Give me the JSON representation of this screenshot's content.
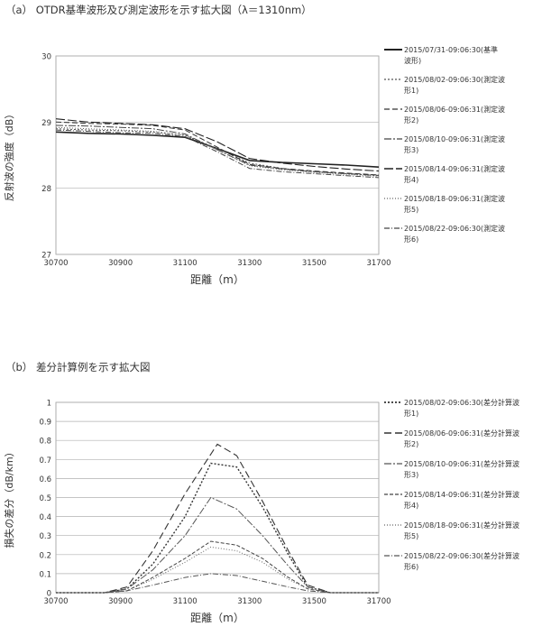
{
  "figure_a_title": "（a）  OTDR基準波形及び測定波形を示す拡大図（λ＝1310nm）",
  "figure_b_title": "（b）  差分計算例を示す拡大図",
  "chart_data": [
    {
      "type": "line",
      "title": "",
      "xlabel": "距離（m）",
      "ylabel": "反射波の強度（dB）",
      "xlim": [
        30700,
        31700
      ],
      "ylim": [
        27,
        30
      ],
      "xticks": [
        30700,
        30900,
        31100,
        31300,
        31500,
        31700
      ],
      "yticks": [
        27,
        28,
        29,
        30
      ],
      "x_tick_labels": [
        "30700",
        "30900",
        "31100",
        "31300",
        "31500",
        "31700"
      ],
      "y_tick_labels": [
        "27",
        "28",
        "29",
        "30"
      ],
      "grid": "horizontal",
      "legend_position": "right",
      "series": [
        {
          "name": "2015/07/31-09:06:30(基準波形)",
          "dash": "solid",
          "color": "#222222",
          "width": 1.6,
          "x": [
            30700,
            30800,
            30900,
            31000,
            31100,
            31200,
            31300,
            31400,
            31500,
            31600,
            31700
          ],
          "y": [
            28.85,
            28.83,
            28.82,
            28.8,
            28.77,
            28.6,
            28.42,
            28.39,
            28.37,
            28.35,
            28.32
          ]
        },
        {
          "name": "2015/08/02-09:06:30(測定波形1)",
          "dash": "2 2",
          "color": "#555555",
          "width": 1.0,
          "x": [
            30700,
            30800,
            30900,
            31000,
            31100,
            31200,
            31300,
            31400,
            31500,
            31600,
            31700
          ],
          "y": [
            28.9,
            28.88,
            28.87,
            28.85,
            28.8,
            28.6,
            28.38,
            28.3,
            28.25,
            28.22,
            28.2
          ]
        },
        {
          "name": "2015/08/06-09:06:31(測定波形2)",
          "dash": "6 3",
          "color": "#333333",
          "width": 1.0,
          "x": [
            30700,
            30800,
            30900,
            31000,
            31100,
            31200,
            31300,
            31400,
            31500,
            31600,
            31700
          ],
          "y": [
            29.0,
            28.98,
            28.97,
            28.95,
            28.88,
            28.62,
            28.36,
            28.3,
            28.26,
            28.23,
            28.2
          ]
        },
        {
          "name": "2015/08/10-09:06:31(測定波形3)",
          "dash": "8 2 2 2",
          "color": "#444444",
          "width": 1.0,
          "x": [
            30700,
            30800,
            30900,
            31000,
            31100,
            31200,
            31300,
            31400,
            31500,
            31600,
            31700
          ],
          "y": [
            28.95,
            28.94,
            28.92,
            28.9,
            28.82,
            28.58,
            28.35,
            28.29,
            28.25,
            28.22,
            28.19
          ]
        },
        {
          "name": "2015/08/14-09:06:31(測定波形4)",
          "dash": "10 3",
          "color": "#222222",
          "width": 1.1,
          "x": [
            30700,
            30800,
            30900,
            31000,
            31100,
            31200,
            31300,
            31400,
            31500,
            31600,
            31700
          ],
          "y": [
            29.05,
            29.0,
            28.98,
            28.96,
            28.9,
            28.7,
            28.45,
            28.38,
            28.33,
            28.29,
            28.26
          ]
        },
        {
          "name": "2015/08/18-09:06:31(測定波形5)",
          "dash": "1 2",
          "color": "#666666",
          "width": 1.0,
          "x": [
            30700,
            30800,
            30900,
            31000,
            31100,
            31200,
            31300,
            31400,
            31500,
            31600,
            31700
          ],
          "y": [
            28.92,
            28.9,
            28.88,
            28.86,
            28.8,
            28.58,
            28.34,
            28.28,
            28.24,
            28.21,
            28.18
          ]
        },
        {
          "name": "2015/08/22-09:06:30(測定波形6)",
          "dash": "6 2 1 2",
          "color": "#444444",
          "width": 1.0,
          "x": [
            30700,
            30800,
            30900,
            31000,
            31100,
            31200,
            31300,
            31400,
            31500,
            31600,
            31700
          ],
          "y": [
            28.88,
            28.86,
            28.84,
            28.83,
            28.78,
            28.55,
            28.3,
            28.25,
            28.22,
            28.19,
            28.16
          ]
        }
      ]
    },
    {
      "type": "line",
      "title": "",
      "xlabel": "距離（m）",
      "ylabel": "損失の差分（dB/km）",
      "xlim": [
        30700,
        31700
      ],
      "ylim": [
        0,
        1
      ],
      "xticks": [
        30700,
        30900,
        31100,
        31300,
        31500,
        31700
      ],
      "yticks": [
        0,
        0.1,
        0.2,
        0.3,
        0.4,
        0.5,
        0.6,
        0.7,
        0.8,
        0.9,
        1
      ],
      "x_tick_labels": [
        "30700",
        "30900",
        "31100",
        "31300",
        "31500",
        "31700"
      ],
      "y_tick_labels": [
        "0",
        "0.1",
        "0.2",
        "0.3",
        "0.4",
        "0.5",
        "0.6",
        "0.7",
        "0.8",
        "0.9",
        "1"
      ],
      "grid": "horizontal",
      "legend_position": "right",
      "series": [
        {
          "name": "2015/08/02-09:06:30(差分計算波形1)",
          "dash": "2 2",
          "color": "#333333",
          "width": 1.4,
          "x": [
            30700,
            30850,
            30920,
            31000,
            31100,
            31180,
            31260,
            31340,
            31420,
            31480,
            31550,
            31700
          ],
          "y": [
            0,
            0,
            0.02,
            0.15,
            0.4,
            0.68,
            0.66,
            0.45,
            0.2,
            0.03,
            0,
            0
          ]
        },
        {
          "name": "2015/08/06-09:06:31(差分計算波形2)",
          "dash": "8 4",
          "color": "#333333",
          "width": 1.1,
          "x": [
            30700,
            30850,
            30920,
            31000,
            31100,
            31200,
            31260,
            31340,
            31420,
            31480,
            31550,
            31700
          ],
          "y": [
            0,
            0,
            0.03,
            0.22,
            0.52,
            0.78,
            0.72,
            0.48,
            0.22,
            0.04,
            0,
            0
          ]
        },
        {
          "name": "2015/08/10-09:06:31(差分計算波形3)",
          "dash": "8 2 2 2",
          "color": "#555555",
          "width": 1.0,
          "x": [
            30700,
            30850,
            30920,
            31000,
            31100,
            31180,
            31260,
            31340,
            31420,
            31480,
            31550,
            31700
          ],
          "y": [
            0,
            0,
            0.02,
            0.12,
            0.3,
            0.5,
            0.44,
            0.3,
            0.14,
            0.03,
            0,
            0
          ]
        },
        {
          "name": "2015/08/14-09:06:31(差分計算波形4)",
          "dash": "4 2",
          "color": "#444444",
          "width": 1.0,
          "x": [
            30700,
            30850,
            30920,
            31000,
            31100,
            31180,
            31260,
            31340,
            31420,
            31480,
            31550,
            31700
          ],
          "y": [
            0,
            0,
            0.01,
            0.08,
            0.18,
            0.27,
            0.25,
            0.18,
            0.08,
            0.02,
            0,
            0
          ]
        },
        {
          "name": "2015/08/18-09:06:31(差分計算波形5)",
          "dash": "1 2",
          "color": "#666666",
          "width": 1.0,
          "x": [
            30700,
            30850,
            30920,
            31000,
            31100,
            31180,
            31260,
            31340,
            31420,
            31480,
            31550,
            31700
          ],
          "y": [
            0,
            0,
            0.01,
            0.07,
            0.16,
            0.24,
            0.22,
            0.16,
            0.07,
            0.02,
            0,
            0
          ]
        },
        {
          "name": "2015/08/22-09:06:30(差分計算波形6)",
          "dash": "6 2 1 2",
          "color": "#555555",
          "width": 1.0,
          "x": [
            30700,
            30850,
            30920,
            31000,
            31100,
            31180,
            31260,
            31340,
            31420,
            31480,
            31550,
            31700
          ],
          "y": [
            0,
            0,
            0.01,
            0.04,
            0.08,
            0.1,
            0.09,
            0.06,
            0.03,
            0.01,
            0,
            0
          ]
        }
      ]
    }
  ]
}
